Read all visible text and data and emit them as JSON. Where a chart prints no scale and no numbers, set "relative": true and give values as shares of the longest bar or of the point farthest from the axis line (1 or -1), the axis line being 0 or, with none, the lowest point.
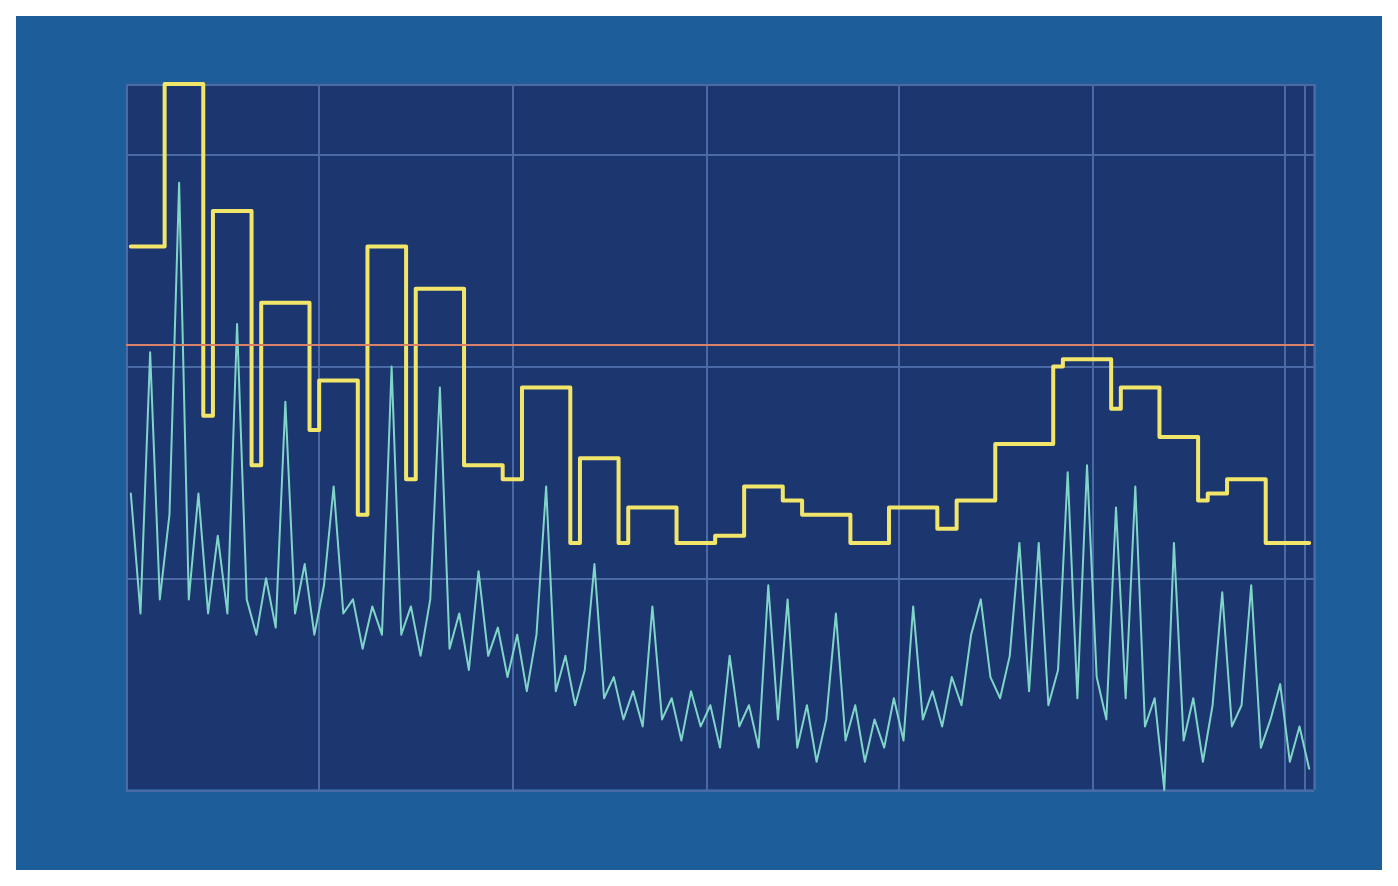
{
  "chart_data": {
    "type": "line",
    "relative": true,
    "grid": true,
    "marker": "none",
    "line_style": "solid",
    "categories": [
      null,
      null,
      null,
      null,
      null,
      null,
      null,
      null,
      null,
      null,
      null,
      null,
      null,
      null,
      null,
      null,
      null,
      null,
      null,
      null,
      null,
      null,
      null,
      null,
      null,
      null,
      null,
      null,
      null,
      null,
      null,
      null,
      null,
      null,
      null,
      null,
      null,
      null,
      null,
      null,
      null,
      null,
      null,
      null,
      null,
      null,
      null,
      null,
      null,
      null,
      null,
      null,
      null,
      null,
      null,
      null,
      null,
      null,
      null,
      null,
      null,
      null,
      null,
      null,
      null,
      null,
      null,
      null,
      null,
      null,
      null,
      null,
      null,
      null,
      null,
      null,
      null,
      null,
      null,
      null,
      null,
      null,
      null,
      null,
      null,
      null,
      null,
      null,
      null,
      null,
      null,
      null,
      null,
      null,
      null,
      null,
      null,
      null,
      null,
      null,
      null,
      null,
      null,
      null,
      null,
      null,
      null,
      null,
      null,
      null,
      null,
      null,
      null,
      null,
      null,
      null,
      null,
      null,
      null,
      null,
      null,
      null,
      null
    ],
    "series": [
      {
        "color": "#7fd6c8",
        "values": [
          0.42,
          0.25,
          0.62,
          0.27,
          0.39,
          0.86,
          0.27,
          0.42,
          0.25,
          0.36,
          0.25,
          0.66,
          0.27,
          0.22,
          0.3,
          0.23,
          0.55,
          0.25,
          0.32,
          0.22,
          0.29,
          0.43,
          0.25,
          0.27,
          0.2,
          0.26,
          0.22,
          0.6,
          0.22,
          0.26,
          0.19,
          0.27,
          0.57,
          0.2,
          0.25,
          0.17,
          0.31,
          0.19,
          0.23,
          0.16,
          0.22,
          0.14,
          0.22,
          0.43,
          0.14,
          0.19,
          0.12,
          0.17,
          0.32,
          0.13,
          0.16,
          0.1,
          0.14,
          0.09,
          0.26,
          0.1,
          0.13,
          0.07,
          0.14,
          0.09,
          0.12,
          0.06,
          0.19,
          0.09,
          0.12,
          0.06,
          0.29,
          0.1,
          0.27,
          0.06,
          0.12,
          0.04,
          0.1,
          0.25,
          0.07,
          0.12,
          0.04,
          0.1,
          0.06,
          0.13,
          0.07,
          0.26,
          0.1,
          0.14,
          0.09,
          0.16,
          0.12,
          0.22,
          0.27,
          0.16,
          0.13,
          0.19,
          0.35,
          0.14,
          0.35,
          0.12,
          0.17,
          0.45,
          0.13,
          0.46,
          0.16,
          0.1,
          0.4,
          0.13,
          0.43,
          0.09,
          0.13,
          0,
          0.35,
          0.07,
          0.13,
          0.04,
          0.12,
          0.28,
          0.09,
          0.12,
          0.29,
          0.06,
          0.1,
          0.15,
          0.04,
          0.09,
          0.03
        ]
      },
      {
        "type": "step",
        "color": "#f2e66a",
        "values": [
          0.77,
          0.77,
          0.77,
          0.77,
          1.0,
          1.0,
          1.0,
          1.0,
          0.53,
          0.82,
          0.82,
          0.82,
          0.82,
          0.46,
          0.69,
          0.69,
          0.69,
          0.69,
          0.69,
          0.51,
          0.58,
          0.58,
          0.58,
          0.58,
          0.39,
          0.77,
          0.77,
          0.77,
          0.77,
          0.44,
          0.71,
          0.71,
          0.71,
          0.71,
          0.71,
          0.46,
          0.46,
          0.46,
          0.46,
          0.44,
          0.44,
          0.57,
          0.57,
          0.57,
          0.57,
          0.57,
          0.35,
          0.47,
          0.47,
          0.47,
          0.47,
          0.35,
          0.4,
          0.4,
          0.4,
          0.4,
          0.4,
          0.35,
          0.35,
          0.35,
          0.35,
          0.36,
          0.36,
          0.36,
          0.43,
          0.43,
          0.43,
          0.43,
          0.41,
          0.41,
          0.39,
          0.39,
          0.39,
          0.39,
          0.39,
          0.35,
          0.35,
          0.35,
          0.35,
          0.4,
          0.4,
          0.4,
          0.4,
          0.4,
          0.37,
          0.37,
          0.41,
          0.41,
          0.41,
          0.41,
          0.49,
          0.49,
          0.49,
          0.49,
          0.49,
          0.49,
          0.6,
          0.61,
          0.61,
          0.61,
          0.61,
          0.61,
          0.54,
          0.57,
          0.57,
          0.57,
          0.57,
          0.5,
          0.5,
          0.5,
          0.5,
          0.41,
          0.42,
          0.42,
          0.44,
          0.44,
          0.44,
          0.44,
          0.35,
          0.35,
          0.35,
          0.35,
          0.35
        ]
      }
    ],
    "ref_lines": [
      {
        "axis": "y",
        "value": 0.63,
        "color": "#d9826a"
      }
    ]
  }
}
